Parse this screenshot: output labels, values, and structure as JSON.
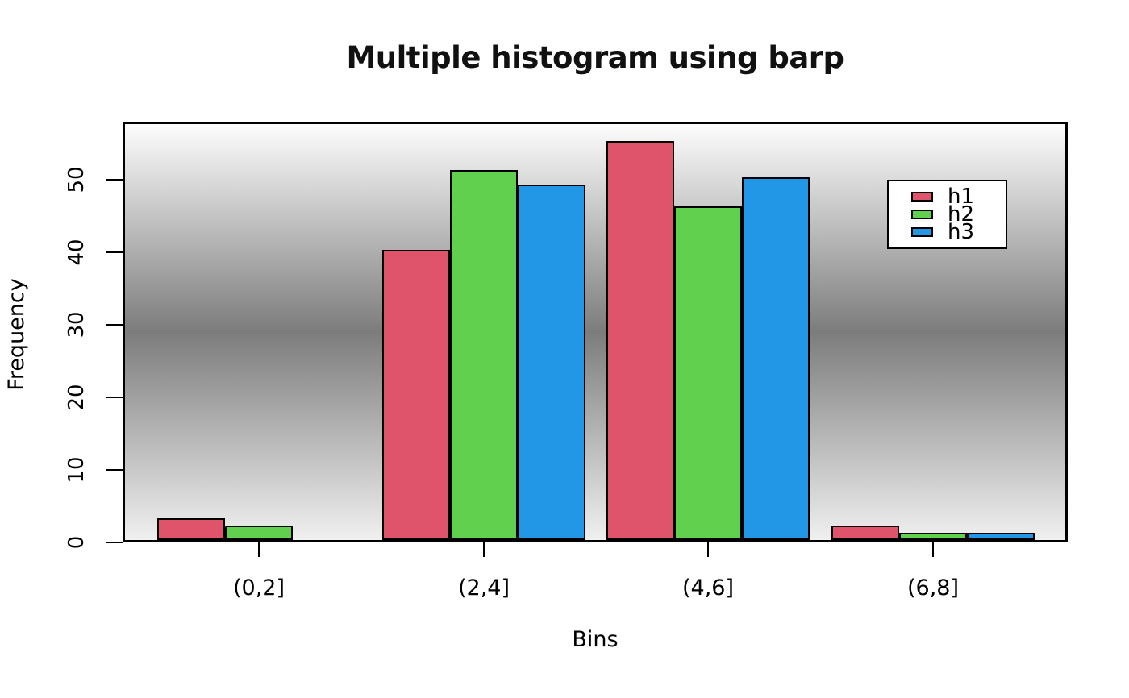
{
  "title": "Multiple histogram using barp",
  "chart_data": {
    "type": "bar",
    "title": "Multiple histogram using barp",
    "xlabel": "Bins",
    "ylabel": "Frequency",
    "categories": [
      "(0,2]",
      "(2,4]",
      "(4,6]",
      "(6,8]"
    ],
    "series": [
      {
        "name": "h1",
        "color": "#DF536B",
        "values": [
          3,
          40,
          55,
          2
        ]
      },
      {
        "name": "h2",
        "color": "#61D04F",
        "values": [
          2,
          51,
          46,
          1
        ]
      },
      {
        "name": "h3",
        "color": "#2297E6",
        "values": [
          0,
          49,
          50,
          1
        ]
      }
    ],
    "yticks": [
      0,
      10,
      20,
      30,
      40,
      50
    ],
    "ylim": [
      0,
      58
    ],
    "grid": false,
    "bar_border_color": "#000000",
    "legend": {
      "position": "top-right",
      "entries": [
        "h1",
        "h2",
        "h3"
      ]
    },
    "plot_background": {
      "type": "vertical-gradient",
      "stops": [
        "#FDFDFD",
        "#7C7C7C",
        "#F0F0F0"
      ]
    }
  }
}
